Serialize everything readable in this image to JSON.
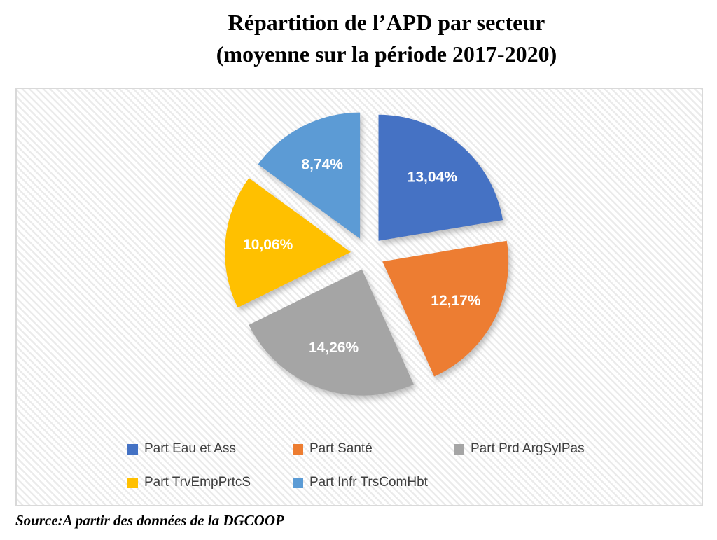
{
  "title": {
    "line1": "Répartition de l’APD par secteur",
    "line2": "(moyenne sur la période 2017-2020)"
  },
  "source": "Source:A partir des données de la DGCOOP",
  "chart_data": {
    "type": "pie",
    "title": "Répartition de l’APD par secteur (moyenne sur la période 2017-2020)",
    "unit": "%",
    "decimal_separator": ",",
    "direction": "clockwise",
    "start_angle_deg": 0,
    "exploded": true,
    "legend_position": "bottom",
    "slices": [
      {
        "label": "Part Eau et Ass",
        "value": 13.04,
        "display": "13,04%",
        "color": "#4472C4"
      },
      {
        "label": "Part Santé",
        "value": 12.17,
        "display": "12,17%",
        "color": "#ED7D31"
      },
      {
        "label": "Part Prd ArgSylPas",
        "value": 14.26,
        "display": "14,26%",
        "color": "#A5A5A5"
      },
      {
        "label": "Part TrvEmpPrtcS",
        "value": 10.06,
        "display": "10,06%",
        "color": "#FFC000"
      },
      {
        "label": "Part Infr TrsComHbt",
        "value": 8.74,
        "display": "8,74%",
        "color": "#5B9BD5"
      }
    ],
    "legend_rows": [
      [
        0,
        1,
        2
      ],
      [
        3,
        4
      ]
    ]
  }
}
